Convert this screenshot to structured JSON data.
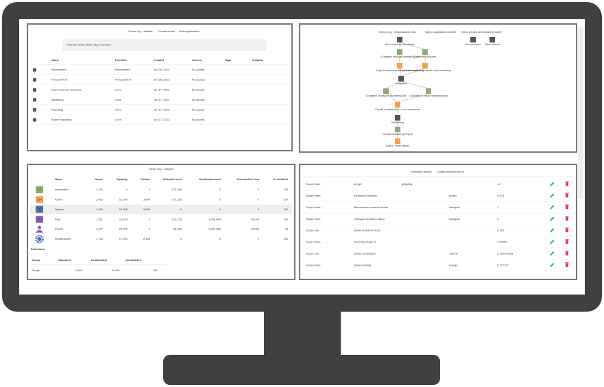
{
  "models": {
    "title": "Demo Org - Models",
    "links": [
      "Create model",
      "Edit organisation"
    ],
    "search_placeholder": "Filter by model name, tag or function",
    "headers": [
      "Name",
      "Function",
      "Created",
      "Access",
      "Tags",
      "Insights"
    ],
    "rows": [
      [
        "Recruitment",
        "Recruitment",
        "Jun 26, 2023",
        "No access"
      ],
      [
        "Procurement",
        "Procurement",
        "Jun 26, 2023",
        "No access"
      ],
      [
        "New Customer Accounts",
        "Core",
        "Jun 17, 2023",
        "No access"
      ],
      [
        "Marketing",
        "Core",
        "Jun 17, 2023",
        "No access"
      ],
      [
        "Reporting",
        "Core",
        "Jun 17, 2023",
        "No access"
      ],
      [
        "Board Reporting",
        "Core",
        "Jun 17, 2023",
        "No access"
      ]
    ]
  },
  "organisation": {
    "title": "Demo Org - Organisation view",
    "links": [
      "Open organisation model",
      "Open people and systems model"
    ],
    "nodes": [
      {
        "label": "New customer business"
      },
      {
        "label": "Outdated Manual Marketing list"
      },
      {
        "label": "Customer account"
      },
      {
        "label": "Export customers for contact marketing"
      },
      {
        "label": "Export customers for direct mail marketing"
      },
      {
        "label": "Analytics"
      },
      {
        "label": "Outdated Transport Marketing list"
      },
      {
        "label": "Outdated Contact Marketing list"
      },
      {
        "label": "Create contact list for new customers"
      },
      {
        "label": "Marketing"
      },
      {
        "label": "Create Marketing Report"
      },
      {
        "label": "Add to Team report"
      },
      {
        "label": "Procurement"
      },
      {
        "label": "Recruitment"
      }
    ]
  },
  "insights": {
    "title": "Demo Org - Insights",
    "headers": [
      "Name",
      "Hours",
      "Capacity",
      "Carbon",
      "Allocated cost",
      "Unallocated cost",
      "Unmodelled cost",
      "% modelled"
    ],
    "rows": [
      {
        "badge": "37",
        "cells": [
          "Information",
          "1,419",
          "0",
          "0",
          "173,156",
          "0",
          "0",
          "100"
        ]
      },
      {
        "badge": "114",
        "cells": [
          "Action",
          "1,419",
          "15,030",
          "3,645",
          "173,156",
          "0",
          "0",
          "100"
        ]
      },
      {
        "badge": "6",
        "cells": [
          "System",
          "1,419",
          "15,048",
          "3,645",
          "0",
          "0",
          "0",
          "100"
        ]
      },
      {
        "badge": "8",
        "cells": [
          "Role",
          "1,261",
          "15,220",
          "0",
          "123,156",
          "1,266,644",
          "43,000",
          "100"
        ]
      },
      {
        "cells": [
          "People",
          "1,247",
          "15,220",
          "0",
          "98,918",
          "1,051,082",
          "43,000",
          "96"
        ]
      },
      {
        "cells": [
          "Infrastructure",
          "1,718",
          "17,094",
          "2,445",
          "0",
          "0",
          "0",
          "100"
        ]
      }
    ],
    "emissions_title": "Emissions",
    "emissions_headers": [
      "Scope",
      "Allocated",
      "Unallocated",
      "Unmodelled"
    ],
    "emissions_rows": [
      [
        "Scope",
        "2,445",
        "34,091",
        "261"
      ]
    ]
  },
  "emission_factors": {
    "title": "Emission factors",
    "link": "Create emission factor",
    "rows": [
      {
        "scope": "Scope three",
        "name": "drrvgh",
        "unit": "gfbgdvfg",
        "factor": "1.2"
      },
      {
        "scope": "Scope three",
        "name": "Electricity Emission",
        "unit": "power",
        "factor": "0.074"
      },
      {
        "scope": "Scope three",
        "name": "Manufacture emission factor",
        "unit": "transport",
        "factor": "1"
      },
      {
        "scope": "Scope three",
        "name": "Transport emission factor",
        "unit": "transport",
        "factor": "5"
      },
      {
        "scope": "Scope one",
        "name": "Diesel emission factor",
        "factor": "2.715"
      },
      {
        "scope": "Scope three",
        "name": "electricity scope 3",
        "factor": "0.00553"
      },
      {
        "scope": "Scope one",
        "name": "Diesel combustion",
        "unit": "volume",
        "factor": "2.714472208"
      },
      {
        "scope": "Scope three",
        "name": "Diesel refining",
        "unit": "energy",
        "factor": "0.707727"
      }
    ]
  }
}
